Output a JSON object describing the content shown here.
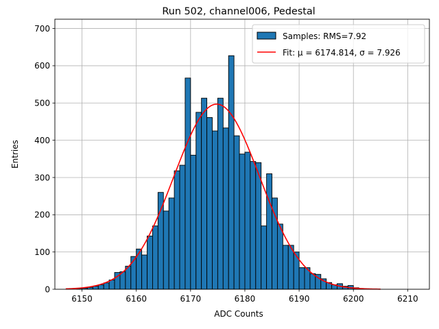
{
  "chart_data": {
    "type": "bar",
    "title": "Run 502, channel006, Pedestal",
    "xlabel": "ADC Counts",
    "ylabel": "Entries",
    "xlim": [
      6145,
      6214
    ],
    "ylim": [
      0,
      725
    ],
    "xticks": [
      6150,
      6160,
      6170,
      6180,
      6190,
      6200,
      6210
    ],
    "yticks": [
      0,
      100,
      200,
      300,
      400,
      500,
      600,
      700
    ],
    "grid": true,
    "legend_position": "top-right",
    "colors": {
      "bar": "#1f77b4",
      "fit": "#ff0000",
      "edge": "#000000",
      "grid": "#b0b0b0"
    },
    "series": [
      {
        "name": "Samples: RMS=7.92",
        "kind": "histogram",
        "bin_width": 1,
        "bin_start": 6149,
        "values": [
          2,
          3,
          5,
          8,
          12,
          17,
          25,
          45,
          47,
          62,
          88,
          108,
          92,
          143,
          170,
          260,
          210,
          245,
          318,
          333,
          567,
          360,
          475,
          513,
          461,
          425,
          513,
          433,
          627,
          412,
          363,
          368,
          343,
          340,
          170,
          310,
          245,
          175,
          118,
          118,
          100,
          58,
          58,
          42,
          40,
          28,
          18,
          12,
          15,
          8,
          10,
          4,
          2
        ]
      },
      {
        "name": "Fit: μ = 6174.814, σ = 7.926",
        "kind": "gaussian",
        "mu": 6174.814,
        "sigma": 7.926,
        "amplitude": 497,
        "x_range": [
          6147,
          6205
        ]
      }
    ]
  }
}
